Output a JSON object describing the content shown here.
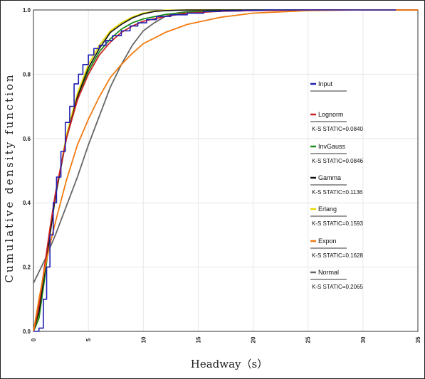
{
  "chart_data": {
    "type": "line",
    "title": "",
    "xlabel": "Headway（s）",
    "ylabel": "Cumulative density function",
    "xlim": [
      0,
      35
    ],
    "ylim": [
      0,
      1.0
    ],
    "x_ticks": [
      "0",
      "5",
      "10",
      "15",
      "20",
      "25",
      "30",
      "35"
    ],
    "y_ticks": [
      "0.0",
      "0.2",
      "0.4",
      "0.6",
      "0.8",
      "1.0"
    ],
    "grid": true,
    "legend_position": "right",
    "series": [
      {
        "name": "Input",
        "color": "#1f1fb4",
        "style": "step",
        "stat": "",
        "x": [
          0,
          0.5,
          0.9,
          1.2,
          1.5,
          1.8,
          2.1,
          2.5,
          2.9,
          3.3,
          3.7,
          4.1,
          4.5,
          5.0,
          5.5,
          6.0,
          6.6,
          7.2,
          8.0,
          8.8,
          9.5,
          10.3,
          11.2,
          12.5,
          14.0,
          15.5,
          17.0,
          19.0,
          21.0,
          25.0,
          28.0,
          31.0,
          33.0
        ],
        "y": [
          0.0,
          0.01,
          0.1,
          0.2,
          0.3,
          0.4,
          0.48,
          0.56,
          0.65,
          0.7,
          0.77,
          0.8,
          0.83,
          0.86,
          0.88,
          0.89,
          0.905,
          0.92,
          0.935,
          0.95,
          0.96,
          0.97,
          0.98,
          0.985,
          0.99,
          0.995,
          0.997,
          0.999,
          1.0,
          1.0,
          1.0,
          1.0,
          1.0
        ]
      },
      {
        "name": "Lognorm",
        "color": "#cc2222",
        "stat": "K-S STATIC=0.0840",
        "x": [
          0,
          0.5,
          1,
          1.5,
          2,
          3,
          4,
          5,
          6,
          7,
          8,
          9,
          10,
          12,
          14,
          17,
          20,
          25,
          30,
          35
        ],
        "y": [
          0,
          0.08,
          0.2,
          0.32,
          0.43,
          0.6,
          0.72,
          0.8,
          0.86,
          0.9,
          0.93,
          0.95,
          0.965,
          0.98,
          0.99,
          0.996,
          0.998,
          1.0,
          1.0,
          1.0
        ]
      },
      {
        "name": "InvGauss",
        "color": "#1a8a1a",
        "stat": "K-S STATIC=0.0846",
        "x": [
          0,
          0.5,
          1,
          1.5,
          2,
          3,
          4,
          5,
          6,
          7,
          8,
          9,
          10,
          12,
          14,
          17,
          20,
          25,
          30,
          35
        ],
        "y": [
          0,
          0.04,
          0.16,
          0.3,
          0.42,
          0.6,
          0.72,
          0.81,
          0.87,
          0.91,
          0.94,
          0.96,
          0.972,
          0.986,
          0.993,
          0.998,
          1.0,
          1.0,
          1.0,
          1.0
        ]
      },
      {
        "name": "Gamma",
        "color": "#111111",
        "stat": "K-S STATIC=0.1136",
        "x": [
          0,
          0.5,
          1,
          1.5,
          2,
          3,
          4,
          5,
          6,
          7,
          8,
          9,
          10,
          11,
          12,
          14,
          17,
          20,
          25,
          30,
          35
        ],
        "y": [
          0,
          0.06,
          0.18,
          0.3,
          0.42,
          0.6,
          0.73,
          0.82,
          0.88,
          0.93,
          0.955,
          0.975,
          0.988,
          0.995,
          0.998,
          1.0,
          1.0,
          1.0,
          1.0,
          1.0,
          1.0
        ]
      },
      {
        "name": "Erlang",
        "color": "#e8d800",
        "stat": "K-S STATIC=0.1593",
        "x": [
          0,
          0.5,
          1,
          1.5,
          2,
          3,
          4,
          5,
          6,
          7,
          8,
          9,
          10,
          11,
          12,
          14,
          17,
          20,
          25,
          30,
          35
        ],
        "y": [
          0,
          0.05,
          0.17,
          0.3,
          0.42,
          0.61,
          0.74,
          0.83,
          0.89,
          0.935,
          0.96,
          0.978,
          0.99,
          0.996,
          0.999,
          1.0,
          1.0,
          1.0,
          1.0,
          1.0,
          1.0
        ]
      },
      {
        "name": "Expon",
        "color": "#f07a10",
        "stat": "K-S STATIC=0.1628",
        "x": [
          0,
          0.5,
          1,
          1.5,
          2,
          3,
          4,
          5,
          6,
          7,
          8,
          9,
          10,
          12,
          14,
          17,
          20,
          25,
          30,
          35
        ],
        "y": [
          0,
          0.1,
          0.19,
          0.27,
          0.34,
          0.47,
          0.58,
          0.66,
          0.73,
          0.79,
          0.83,
          0.865,
          0.895,
          0.93,
          0.955,
          0.977,
          0.99,
          0.998,
          1.0,
          1.0
        ]
      },
      {
        "name": "Normal",
        "color": "#666666",
        "stat": "K-S STATIC=0.2065",
        "x": [
          0,
          1,
          2,
          3,
          4,
          5,
          6,
          7,
          8,
          9,
          10,
          11,
          12,
          13,
          14,
          16,
          18,
          20,
          25,
          30,
          35
        ],
        "y": [
          0.15,
          0.22,
          0.3,
          0.39,
          0.48,
          0.58,
          0.67,
          0.76,
          0.83,
          0.89,
          0.935,
          0.96,
          0.98,
          0.99,
          0.995,
          1.0,
          1.0,
          1.0,
          1.0,
          1.0,
          1.0
        ]
      }
    ]
  }
}
